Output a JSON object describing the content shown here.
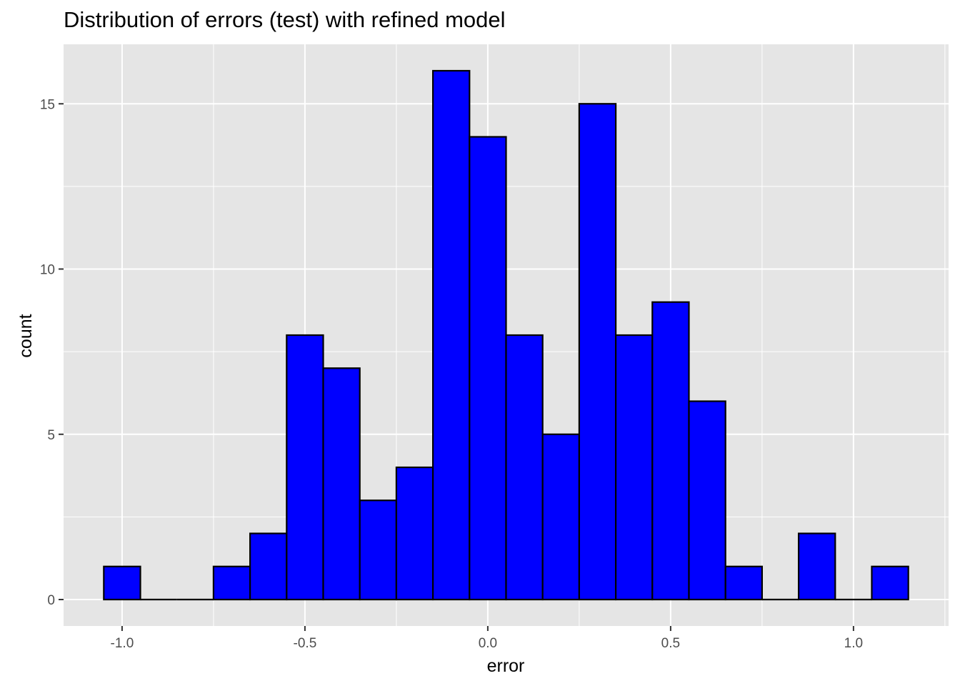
{
  "chart_data": {
    "type": "bar",
    "title": "Distribution of errors (test) with refined model",
    "xlabel": "error",
    "ylabel": "count",
    "bin_width": 0.1,
    "bin_centers": [
      -1.0,
      -0.9,
      -0.8,
      -0.7,
      -0.6,
      -0.5,
      -0.4,
      -0.3,
      -0.2,
      -0.1,
      0.0,
      0.1,
      0.2,
      0.3,
      0.4,
      0.5,
      0.6,
      0.7,
      0.8,
      0.9,
      1.0,
      1.1
    ],
    "values": [
      1,
      0,
      0,
      1,
      2,
      8,
      7,
      3,
      4,
      16,
      14,
      8,
      5,
      15,
      8,
      9,
      6,
      1,
      0,
      2,
      0,
      1
    ],
    "xlim": [
      -1.16,
      1.26
    ],
    "ylim": [
      -0.8,
      16.8
    ],
    "x_ticks": [
      -1.0,
      -0.5,
      0.0,
      0.5,
      1.0
    ],
    "x_tick_labels": [
      "-1.0",
      "-0.5",
      "0.0",
      "0.5",
      "1.0"
    ],
    "y_ticks": [
      0,
      5,
      10,
      15
    ],
    "y_tick_labels": [
      "0",
      "5",
      "10",
      "15"
    ],
    "grid": true,
    "colors": {
      "bar_fill": "#0000ff",
      "bar_outline": "#000000",
      "panel_background": "#e5e5e5",
      "grid_line": "#ffffff"
    }
  }
}
